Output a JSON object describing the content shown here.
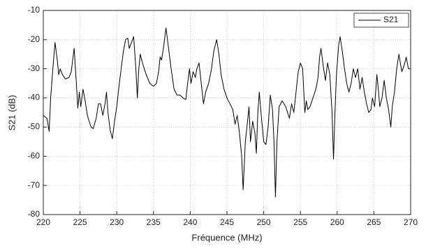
{
  "chart_data": {
    "type": "line",
    "xlabel": "Fréquence (MHz)",
    "ylabel": "S21 (dB)",
    "x": [
      220,
      220.5,
      220.8,
      221,
      221.3,
      221.6,
      221.9,
      222.1,
      222.3,
      222.6,
      223,
      223.5,
      223.8,
      224.2,
      224.5,
      224.7,
      224.9,
      225.1,
      225.4,
      225.7,
      226,
      226.5,
      226.8,
      227.2,
      227.5,
      227.8,
      228.1,
      228.4,
      228.6,
      228.8,
      229.1,
      229.4,
      229.7,
      230,
      230.3,
      230.6,
      230.9,
      231.2,
      231.5,
      231.7,
      232,
      232.3,
      232.6,
      232.8,
      233,
      233.2,
      233.5,
      234,
      234.5,
      235,
      235.4,
      235.7,
      235.9,
      236.1,
      236.4,
      236.7,
      237,
      237.4,
      237.8,
      238.2,
      238.6,
      239,
      239.4,
      239.6,
      239.9,
      240.1,
      240.4,
      240.7,
      240.9,
      241.2,
      241.5,
      241.8,
      242.1,
      242.5,
      242.9,
      243.2,
      243.6,
      243.9,
      244.2,
      244.6,
      245,
      245.4,
      245.8,
      246.1,
      246.4,
      246.7,
      247,
      247.2,
      247.5,
      247.8,
      248,
      248.2,
      248.5,
      248.8,
      249,
      249.2,
      249.4,
      249.7,
      250,
      250.3,
      250.6,
      250.9,
      251.2,
      251.4,
      251.6,
      251.8,
      252.1,
      252.5,
      253,
      253.5,
      253.8,
      254.1,
      254.4,
      254.7,
      255,
      255.3,
      255.6,
      255.8,
      256,
      256.3,
      256.7,
      257.1,
      257.4,
      257.6,
      257.8,
      258.1,
      258.4,
      258.7,
      259,
      259.3,
      259.5,
      259.7,
      259.9,
      260.2,
      260.4,
      260.7,
      261,
      261.3,
      261.6,
      261.9,
      262.2,
      262.5,
      262.8,
      263.1,
      263.4,
      263.7,
      264,
      264.3,
      264.6,
      264.8,
      265.1,
      265.4,
      265.6,
      265.8,
      266.1,
      266.4,
      266.7,
      267,
      267.3,
      267.5,
      267.8,
      268.1,
      268.4,
      268.8,
      269.1,
      269.4,
      269.7,
      270
    ],
    "series": [
      {
        "name": "S21",
        "color": "#000000",
        "values": [
          -46,
          -47,
          -51.5,
          -40,
          -30,
          -21,
          -27,
          -32,
          -30,
          -32,
          -33.5,
          -33,
          -31,
          -23,
          -35,
          -43.5,
          -38,
          -43,
          -37,
          -41,
          -46,
          -50,
          -50.5,
          -47,
          -42,
          -42,
          -46,
          -42,
          -38,
          -45,
          -51,
          -54,
          -48,
          -43,
          -36,
          -30,
          -24,
          -20,
          -19.5,
          -23,
          -21,
          -19,
          -30,
          -40,
          -30,
          -25,
          -28,
          -32,
          -35,
          -36,
          -35,
          -31,
          -26,
          -27,
          -22,
          -16,
          -22,
          -30,
          -37,
          -39,
          -39,
          -40,
          -40.5,
          -36,
          -30,
          -35,
          -31,
          -33,
          -30,
          -28,
          -35,
          -42,
          -38,
          -35,
          -30,
          -24,
          -20,
          -25,
          -32,
          -37,
          -40,
          -42,
          -44,
          -49,
          -46,
          -52,
          -60,
          -71.5,
          -55,
          -48,
          -43,
          -55,
          -48,
          -52,
          -59,
          -45,
          -38,
          -47,
          -55,
          -56,
          -50,
          -39,
          -44,
          -55,
          -74,
          -55,
          -43,
          -41,
          -43,
          -47,
          -42,
          -45,
          -38,
          -31,
          -28,
          -30,
          -45,
          -41,
          -44,
          -43,
          -40,
          -37,
          -33,
          -26,
          -23,
          -29,
          -34,
          -28,
          -32,
          -45,
          -61,
          -45,
          -32,
          -22,
          -19,
          -24,
          -30,
          -35,
          -38,
          -35,
          -30,
          -33,
          -30,
          -37,
          -33,
          -38,
          -42,
          -45,
          -44,
          -40,
          -43,
          -32,
          -37,
          -43,
          -40,
          -34,
          -40,
          -44,
          -50,
          -43,
          -38,
          -30,
          -25,
          -31,
          -29,
          -26,
          -30,
          -30
        ]
      }
    ],
    "xlim": [
      220,
      270
    ],
    "xticks": [
      220,
      225,
      230,
      235,
      240,
      245,
      250,
      255,
      260,
      265,
      270
    ],
    "ylim": [
      -80,
      -10
    ],
    "yticks": [
      -80,
      -70,
      -60,
      -50,
      -40,
      -30,
      -20,
      -10
    ],
    "grid": true,
    "legend": "upper right"
  }
}
